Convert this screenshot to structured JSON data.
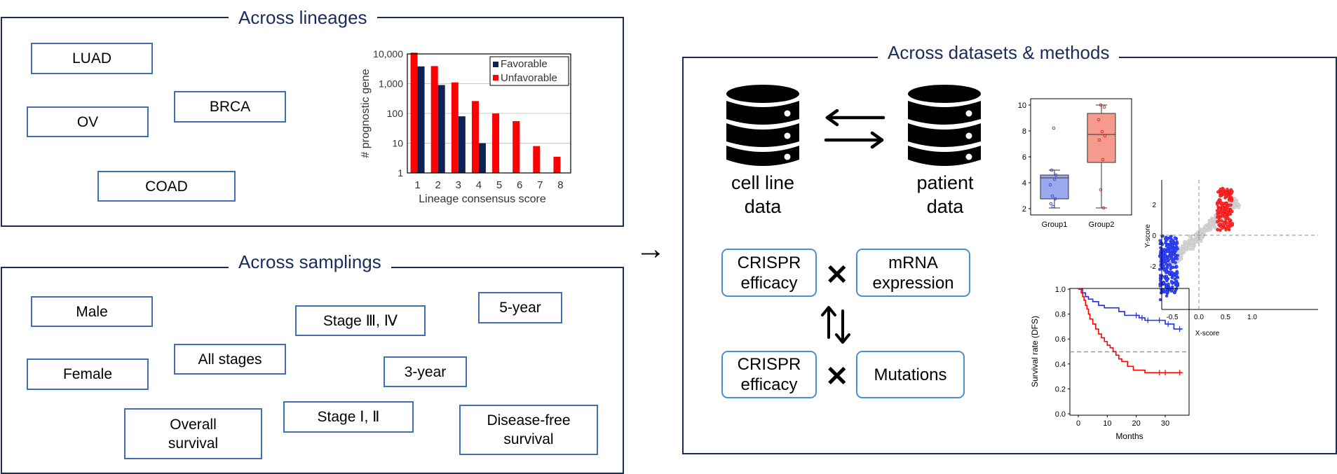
{
  "lineages": {
    "title": "Across lineages",
    "tags": [
      "LUAD",
      "BRCA",
      "OV",
      "COAD"
    ],
    "chart_data": {
      "type": "bar",
      "xlabel": "Lineage consensus score",
      "ylabel": "# prognostic gene",
      "y_scale": "log",
      "ylim": [
        1,
        10000
      ],
      "y_ticks": [
        "1",
        "10",
        "100",
        "1,000",
        "10,000"
      ],
      "categories": [
        "1",
        "2",
        "3",
        "4",
        "5",
        "6",
        "7",
        "8"
      ],
      "legend_position": "top-right",
      "grid": true,
      "series": [
        {
          "name": "Favorable",
          "color": "#0d2255",
          "values": [
            3800,
            900,
            80,
            10,
            null,
            null,
            null,
            null
          ]
        },
        {
          "name": "Unfavorable",
          "color": "#ff0000",
          "values": [
            11000,
            3900,
            1100,
            260,
            100,
            55,
            8,
            3.5
          ]
        }
      ]
    }
  },
  "samplings": {
    "title": "Across samplings",
    "tags": [
      "Male",
      "Female",
      "All stages",
      "Stage Ⅲ, Ⅳ",
      "Stage Ⅰ, Ⅱ",
      "5-year",
      "3-year",
      "Overall\nsurvival",
      "Disease-free\nsurvival"
    ]
  },
  "arrow_symbol": "→",
  "datasets": {
    "title": "Across datasets & methods",
    "cell_line_label": "cell line\ndata",
    "patient_label": "patient\ndata",
    "boxes": [
      "CRISPR\nefficacy",
      "mRNA\nexpression",
      "CRISPR\nefficacy",
      "Mutations"
    ],
    "cross_symbol": "✕",
    "boxplot": {
      "categories": [
        "Group1",
        "Group2"
      ],
      "y_ticks": [
        "2",
        "4",
        "6",
        "8",
        "10"
      ],
      "colors": [
        "#9aa8ee",
        "#f59a8c"
      ]
    },
    "scatter": {
      "xlabel": "X-score",
      "ylabel": "Y-score",
      "x_ticks": [
        "-0.5",
        "0.0",
        "0.5",
        "1.0"
      ],
      "y_ticks": [
        "2",
        "0",
        "-2"
      ]
    },
    "survival": {
      "xlabel": "Months",
      "ylabel": "Survival rate (DFS)",
      "x_ticks": [
        "0",
        "10",
        "20",
        "30"
      ],
      "y_ticks": [
        "0.0",
        "0.2",
        "0.4",
        "0.6",
        "0.8",
        "1.0"
      ],
      "curves": [
        {
          "color": "#1f2fe0",
          "points": [
            [
              0,
              1.0
            ],
            [
              1,
              1.0
            ],
            [
              1.5,
              0.97
            ],
            [
              2.5,
              0.94
            ],
            [
              3.5,
              0.92
            ],
            [
              5,
              0.9
            ],
            [
              7,
              0.87
            ],
            [
              9,
              0.85
            ],
            [
              12,
              0.85
            ],
            [
              14,
              0.82
            ],
            [
              16,
              0.79
            ],
            [
              19,
              0.79
            ],
            [
              21,
              0.77
            ],
            [
              23,
              0.75
            ],
            [
              27,
              0.75
            ],
            [
              30,
              0.72
            ],
            [
              33,
              0.68
            ],
            [
              36,
              0.68
            ]
          ]
        },
        {
          "color": "#ff0000",
          "points": [
            [
              0,
              1.0
            ],
            [
              1,
              0.97
            ],
            [
              1.5,
              0.94
            ],
            [
              2,
              0.91
            ],
            [
              2.5,
              0.87
            ],
            [
              3,
              0.84
            ],
            [
              3.5,
              0.8
            ],
            [
              4,
              0.76
            ],
            [
              5,
              0.72
            ],
            [
              6,
              0.68
            ],
            [
              7,
              0.64
            ],
            [
              8,
              0.61
            ],
            [
              9,
              0.58
            ],
            [
              10,
              0.55
            ],
            [
              11,
              0.53
            ],
            [
              12,
              0.5
            ],
            [
              13,
              0.47
            ],
            [
              14,
              0.44
            ],
            [
              15,
              0.42
            ],
            [
              17,
              0.38
            ],
            [
              19,
              0.35
            ],
            [
              21,
              0.35
            ],
            [
              23,
              0.33
            ],
            [
              36,
              0.33
            ]
          ]
        }
      ]
    }
  }
}
